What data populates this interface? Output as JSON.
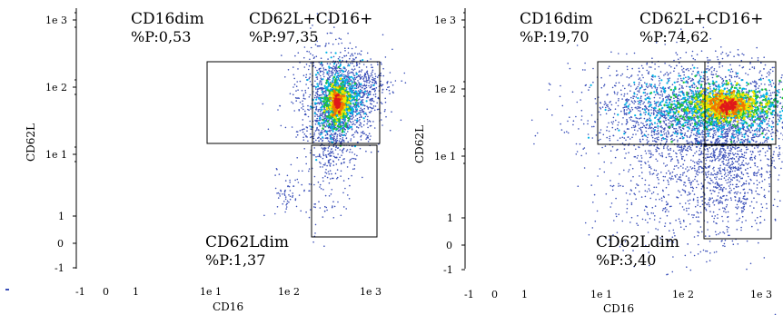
{
  "chart_data": [
    {
      "type": "scatter",
      "title": "",
      "xlabel": "CD16",
      "ylabel": "CD62L",
      "x_scale": "biexponential",
      "y_scale": "biexponential",
      "x_ticks": [
        "-1",
        "0",
        "1",
        "1e 1",
        "1e 2",
        "1e 3"
      ],
      "y_ticks": [
        "-1",
        "0",
        "1",
        "1e 1",
        "1e 2",
        "1e 3"
      ],
      "gates": [
        {
          "name": "CD16dim",
          "percent_label": "%P:0,53",
          "percent": 0.53
        },
        {
          "name": "CD62L+CD16+",
          "percent_label": "%P:97,35",
          "percent": 97.35
        },
        {
          "name": "CD62Ldim",
          "percent_label": "%P:1,37",
          "percent": 1.37
        }
      ]
    },
    {
      "type": "scatter",
      "title": "",
      "xlabel": "CD16",
      "ylabel": "CD62L",
      "x_scale": "biexponential",
      "y_scale": "biexponential",
      "x_ticks": [
        "-1",
        "0",
        "1",
        "1e 1",
        "1e 2",
        "1e 3"
      ],
      "y_ticks": [
        "-1",
        "0",
        "1",
        "1e 1",
        "1e 2",
        "1e 3"
      ],
      "gates": [
        {
          "name": "CD16dim",
          "percent_label": "%P:19,70",
          "percent": 19.7
        },
        {
          "name": "CD62L+CD16+",
          "percent_label": "%P:74,62",
          "percent": 74.62
        },
        {
          "name": "CD62Ldim",
          "percent_label": "%P:3,40",
          "percent": 3.4
        }
      ]
    }
  ],
  "colors": {
    "sparse": "#3a4fb8",
    "low": "#00b4e6",
    "mid": "#22c23a",
    "high": "#f2e600",
    "peak": "#f07800",
    "core": "#e0181a",
    "gate_stroke": "#000000"
  }
}
